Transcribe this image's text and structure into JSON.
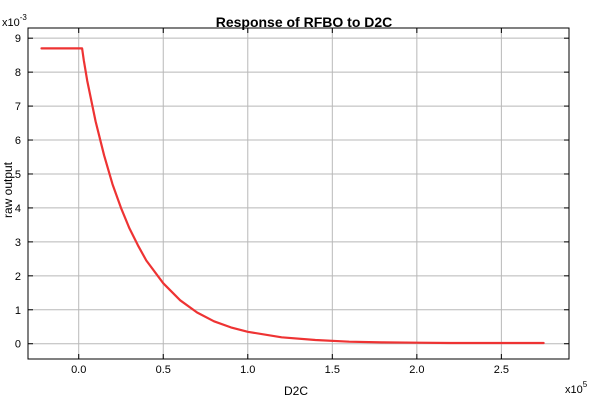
{
  "chart_data": {
    "type": "line",
    "title": "Response of RFBO to D2C",
    "xlabel": "D2C",
    "ylabel": "raw output",
    "x_scale": {
      "base": "x10",
      "exponent": "5"
    },
    "y_scale": {
      "base": "x10",
      "exponent": "-3"
    },
    "xlim": [
      -0.3,
      2.9
    ],
    "ylim": [
      -0.45,
      9.3
    ],
    "x_ticks": [
      0,
      0.5,
      1,
      1.5,
      2,
      2.5
    ],
    "x_tick_labels": [
      "0.0",
      "0.5",
      "1.0",
      "1.5",
      "2.0",
      "2.5"
    ],
    "y_ticks": [
      0,
      1,
      2,
      3,
      4,
      5,
      6,
      7,
      8,
      9
    ],
    "y_tick_labels": [
      "0",
      "1",
      "2",
      "3",
      "4",
      "5",
      "6",
      "7",
      "8",
      "9"
    ],
    "grid": true,
    "legend": "none",
    "series": [
      {
        "color": "#ee3333",
        "x": [
          -0.22,
          -0.1,
          0.0,
          0.02,
          0.03,
          0.05,
          0.1,
          0.15,
          0.2,
          0.25,
          0.3,
          0.35,
          0.4,
          0.5,
          0.6,
          0.7,
          0.8,
          0.9,
          1.0,
          1.2,
          1.4,
          1.6,
          1.8,
          2.0,
          2.2,
          2.5,
          2.75
        ],
        "y": [
          8.7,
          8.7,
          8.7,
          8.7,
          8.35,
          7.75,
          6.55,
          5.55,
          4.7,
          4.0,
          3.4,
          2.9,
          2.45,
          1.78,
          1.28,
          0.92,
          0.66,
          0.48,
          0.35,
          0.19,
          0.11,
          0.06,
          0.04,
          0.03,
          0.02,
          0.02,
          0.02
        ]
      }
    ]
  }
}
